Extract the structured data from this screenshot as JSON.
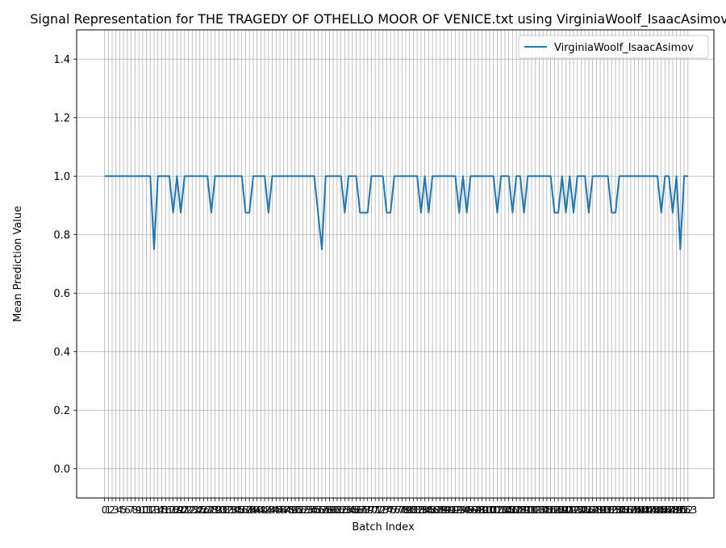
{
  "chart_data": {
    "type": "line",
    "title": "Signal Representation for THE TRAGEDY OF OTHELLO MOOR OF VENICE.txt using VirginiaWoolf_IsaacAsimov",
    "xlabel": "Batch Index",
    "ylabel": "Mean Prediction Value",
    "xlim": [
      0,
      153
    ],
    "ylim": [
      -0.1,
      1.5
    ],
    "yticks": [
      0.0,
      0.2,
      0.4,
      0.6,
      0.8,
      1.0,
      1.2,
      1.4
    ],
    "grid": true,
    "legend_position": "top-right",
    "line_color": "#1f77b4",
    "grid_color": "#b0b0b0",
    "series": [
      {
        "name": "VirginiaWoolf_IsaacAsimov",
        "x": [
          0,
          1,
          2,
          3,
          4,
          5,
          6,
          7,
          8,
          9,
          10,
          11,
          12,
          13,
          14,
          15,
          16,
          17,
          18,
          19,
          20,
          21,
          22,
          23,
          24,
          25,
          26,
          27,
          28,
          29,
          30,
          31,
          32,
          33,
          34,
          35,
          36,
          37,
          38,
          39,
          40,
          41,
          42,
          43,
          44,
          45,
          46,
          47,
          48,
          49,
          50,
          51,
          52,
          53,
          54,
          55,
          56,
          57,
          58,
          59,
          60,
          61,
          62,
          63,
          64,
          65,
          66,
          67,
          68,
          69,
          70,
          71,
          72,
          73,
          74,
          75,
          76,
          77,
          78,
          79,
          80,
          81,
          82,
          83,
          84,
          85,
          86,
          87,
          88,
          89,
          90,
          91,
          92,
          93,
          94,
          95,
          96,
          97,
          98,
          99,
          100,
          101,
          102,
          103,
          104,
          105,
          106,
          107,
          108,
          109,
          110,
          111,
          112,
          113,
          114,
          115,
          116,
          117,
          118,
          119,
          120,
          121,
          122,
          123,
          124,
          125,
          126,
          127,
          128,
          129,
          130,
          131,
          132,
          133,
          134,
          135,
          136,
          137,
          138,
          139,
          140,
          141,
          142,
          143,
          144,
          145,
          146,
          147,
          148,
          149,
          150,
          151,
          152,
          153
        ],
        "values": [
          1,
          1,
          1,
          1,
          1,
          1,
          1,
          1,
          1,
          1,
          1,
          1,
          1,
          0.75,
          1,
          1,
          1,
          1,
          0.875,
          1,
          0.875,
          1,
          1,
          1,
          1,
          1,
          1,
          1,
          0.875,
          1,
          1,
          1,
          1,
          1,
          1,
          1,
          1,
          0.875,
          0.875,
          1,
          1,
          1,
          1,
          0.875,
          1,
          1,
          1,
          1,
          1,
          1,
          1,
          1,
          1,
          1,
          1,
          1,
          0.875,
          0.75,
          1,
          1,
          1,
          1,
          1,
          0.875,
          1,
          1,
          1,
          0.875,
          0.875,
          0.875,
          1,
          1,
          1,
          1,
          0.875,
          0.875,
          1,
          1,
          1,
          1,
          1,
          1,
          1,
          0.875,
          1,
          0.875,
          1,
          1,
          1,
          1,
          1,
          1,
          1,
          0.875,
          1,
          0.875,
          1,
          1,
          1,
          1,
          1,
          1,
          1,
          0.875,
          1,
          1,
          1,
          0.875,
          1,
          1,
          0.875,
          1,
          1,
          1,
          1,
          1,
          1,
          1,
          0.875,
          0.875,
          1,
          0.875,
          1,
          0.875,
          1,
          1,
          1,
          0.875,
          1,
          1,
          1,
          1,
          1,
          0.875,
          0.875,
          1,
          1,
          1,
          1,
          1,
          1,
          1,
          1,
          1,
          1,
          1,
          0.875,
          1,
          1,
          0.875,
          1,
          0.75,
          1,
          1
        ]
      }
    ]
  }
}
